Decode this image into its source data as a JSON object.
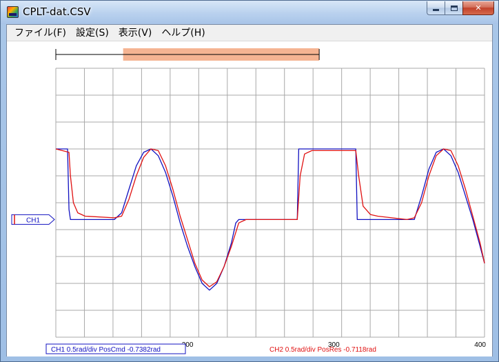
{
  "window": {
    "title": "CPLT-dat.CSV"
  },
  "caption_buttons": {
    "close": "✕"
  },
  "menu": [
    {
      "label": "ファイル(F)"
    },
    {
      "label": "設定(S)"
    },
    {
      "label": "表示(V)"
    },
    {
      "label": "ヘルプ(H)"
    }
  ],
  "channel_marker": {
    "label": "CH1"
  },
  "legend": {
    "ch1": "CH1 0.5rad/div PosCmd -0.7382rad",
    "ch2": "CH2 0.5rad/div PosRes -0.7118rad"
  },
  "colors": {
    "ch1": "#1010c0",
    "ch2": "#e01010",
    "grid": "#a8a8a8",
    "range_bar": "#f4b08c"
  },
  "chart_data": {
    "type": "line",
    "xlim": [
      110,
      403
    ],
    "ylim": [
      -4,
      4
    ],
    "x_ticks": [
      200,
      300,
      400
    ],
    "x_tick_labels": [
      "200",
      "300",
      "400"
    ],
    "grid": true,
    "range_bar": {
      "full": [
        110,
        290
      ],
      "selected": [
        156,
        290
      ]
    },
    "series": [
      {
        "name": "CH1 PosCmd",
        "points": [
          [
            110,
            1.6
          ],
          [
            118,
            1.6
          ],
          [
            119,
            -0.2
          ],
          [
            120,
            -0.5
          ],
          [
            150,
            -0.5
          ],
          [
            155,
            -0.3
          ],
          [
            160,
            0.4
          ],
          [
            165,
            1.1
          ],
          [
            170,
            1.5
          ],
          [
            175,
            1.6
          ],
          [
            180,
            1.4
          ],
          [
            185,
            0.9
          ],
          [
            190,
            0.2
          ],
          [
            195,
            -0.6
          ],
          [
            200,
            -1.3
          ],
          [
            205,
            -1.9
          ],
          [
            210,
            -2.4
          ],
          [
            215,
            -2.6
          ],
          [
            220,
            -2.4
          ],
          [
            225,
            -1.9
          ],
          [
            230,
            -1.2
          ],
          [
            233,
            -0.6
          ],
          [
            235,
            -0.5
          ],
          [
            275,
            -0.5
          ],
          [
            276,
            1.6
          ],
          [
            315,
            1.6
          ],
          [
            316,
            -0.5
          ],
          [
            355,
            -0.5
          ],
          [
            360,
            0.2
          ],
          [
            365,
            1.0
          ],
          [
            370,
            1.5
          ],
          [
            375,
            1.6
          ],
          [
            380,
            1.4
          ],
          [
            385,
            0.9
          ],
          [
            390,
            0.2
          ],
          [
            395,
            -0.5
          ],
          [
            400,
            -1.3
          ],
          [
            403,
            -1.8
          ]
        ]
      },
      {
        "name": "CH2 PosRes",
        "points": [
          [
            110,
            1.6
          ],
          [
            119,
            1.5
          ],
          [
            120,
            0.8
          ],
          [
            122,
            0.0
          ],
          [
            125,
            -0.3
          ],
          [
            130,
            -0.4
          ],
          [
            150,
            -0.45
          ],
          [
            155,
            -0.4
          ],
          [
            160,
            0.1
          ],
          [
            165,
            0.8
          ],
          [
            170,
            1.35
          ],
          [
            175,
            1.6
          ],
          [
            180,
            1.55
          ],
          [
            185,
            1.1
          ],
          [
            190,
            0.4
          ],
          [
            195,
            -0.4
          ],
          [
            200,
            -1.1
          ],
          [
            205,
            -1.8
          ],
          [
            210,
            -2.3
          ],
          [
            215,
            -2.5
          ],
          [
            220,
            -2.35
          ],
          [
            225,
            -1.9
          ],
          [
            230,
            -1.3
          ],
          [
            235,
            -0.6
          ],
          [
            240,
            -0.5
          ],
          [
            275,
            -0.5
          ],
          [
            277,
            0.8
          ],
          [
            280,
            1.45
          ],
          [
            285,
            1.55
          ],
          [
            315,
            1.55
          ],
          [
            317,
            0.8
          ],
          [
            320,
            -0.1
          ],
          [
            325,
            -0.35
          ],
          [
            330,
            -0.4
          ],
          [
            350,
            -0.5
          ],
          [
            355,
            -0.45
          ],
          [
            360,
            0.0
          ],
          [
            365,
            0.8
          ],
          [
            370,
            1.4
          ],
          [
            375,
            1.6
          ],
          [
            380,
            1.55
          ],
          [
            385,
            1.1
          ],
          [
            390,
            0.4
          ],
          [
            395,
            -0.4
          ],
          [
            400,
            -1.2
          ],
          [
            403,
            -1.8
          ]
        ]
      }
    ]
  }
}
